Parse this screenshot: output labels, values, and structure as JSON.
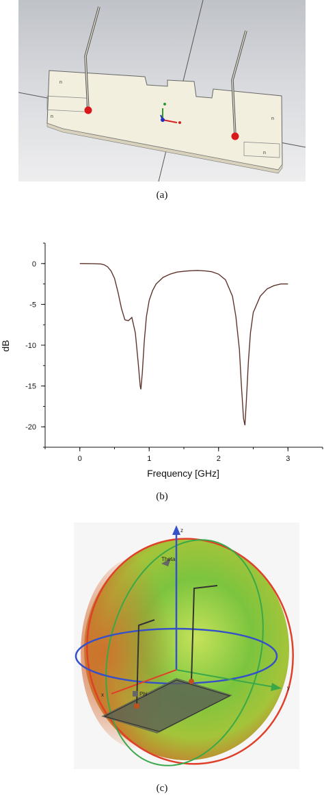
{
  "captions": {
    "a": "(a)",
    "b": "(b)",
    "c": "(c)"
  },
  "panel_a": {
    "port_labels": [
      "n",
      "n",
      "n",
      "n"
    ]
  },
  "panel_c": {
    "axis_z": "z",
    "axis_x": "x",
    "axis_y": "y",
    "theta_label": "Theta",
    "phi_label": "Phi"
  },
  "chart_data": {
    "type": "line",
    "xlabel": "Frequency [GHz]",
    "ylabel": "dB",
    "xlim": [
      -0.5,
      3.5
    ],
    "ylim": [
      -22.5,
      2.5
    ],
    "xticks": [
      0,
      1,
      2,
      3
    ],
    "yticks": [
      0,
      -5,
      -10,
      -15,
      -20
    ],
    "grid": false,
    "series": [
      {
        "color": "#333333",
        "x": [
          0,
          0.2,
          0.3,
          0.35,
          0.4,
          0.45,
          0.5,
          0.55,
          0.6,
          0.65,
          0.7,
          0.75,
          0.8,
          0.84,
          0.87,
          0.88,
          0.9,
          0.93,
          0.96,
          1.0,
          1.05,
          1.1,
          1.2,
          1.3,
          1.4,
          1.5,
          1.6,
          1.7,
          1.8,
          1.9,
          2.0,
          2.1,
          2.2,
          2.25,
          2.3,
          2.33,
          2.36,
          2.38,
          2.4,
          2.43,
          2.46,
          2.5,
          2.6,
          2.7,
          2.8,
          2.9,
          3.0
        ],
        "y": [
          0,
          -0.02,
          -0.05,
          -0.15,
          -0.4,
          -0.9,
          -1.8,
          -3.5,
          -5.5,
          -6.9,
          -7.0,
          -6.6,
          -8.5,
          -12.0,
          -15.0,
          -15.4,
          -13.5,
          -9.5,
          -6.5,
          -4.5,
          -3.3,
          -2.5,
          -1.7,
          -1.3,
          -1.05,
          -0.95,
          -0.88,
          -0.85,
          -0.9,
          -1.0,
          -1.3,
          -2.0,
          -4.0,
          -6.5,
          -10.5,
          -15.0,
          -19.0,
          -19.8,
          -17.0,
          -12.0,
          -8.5,
          -6.0,
          -4.0,
          -3.1,
          -2.7,
          -2.5,
          -2.5
        ]
      }
    ]
  }
}
